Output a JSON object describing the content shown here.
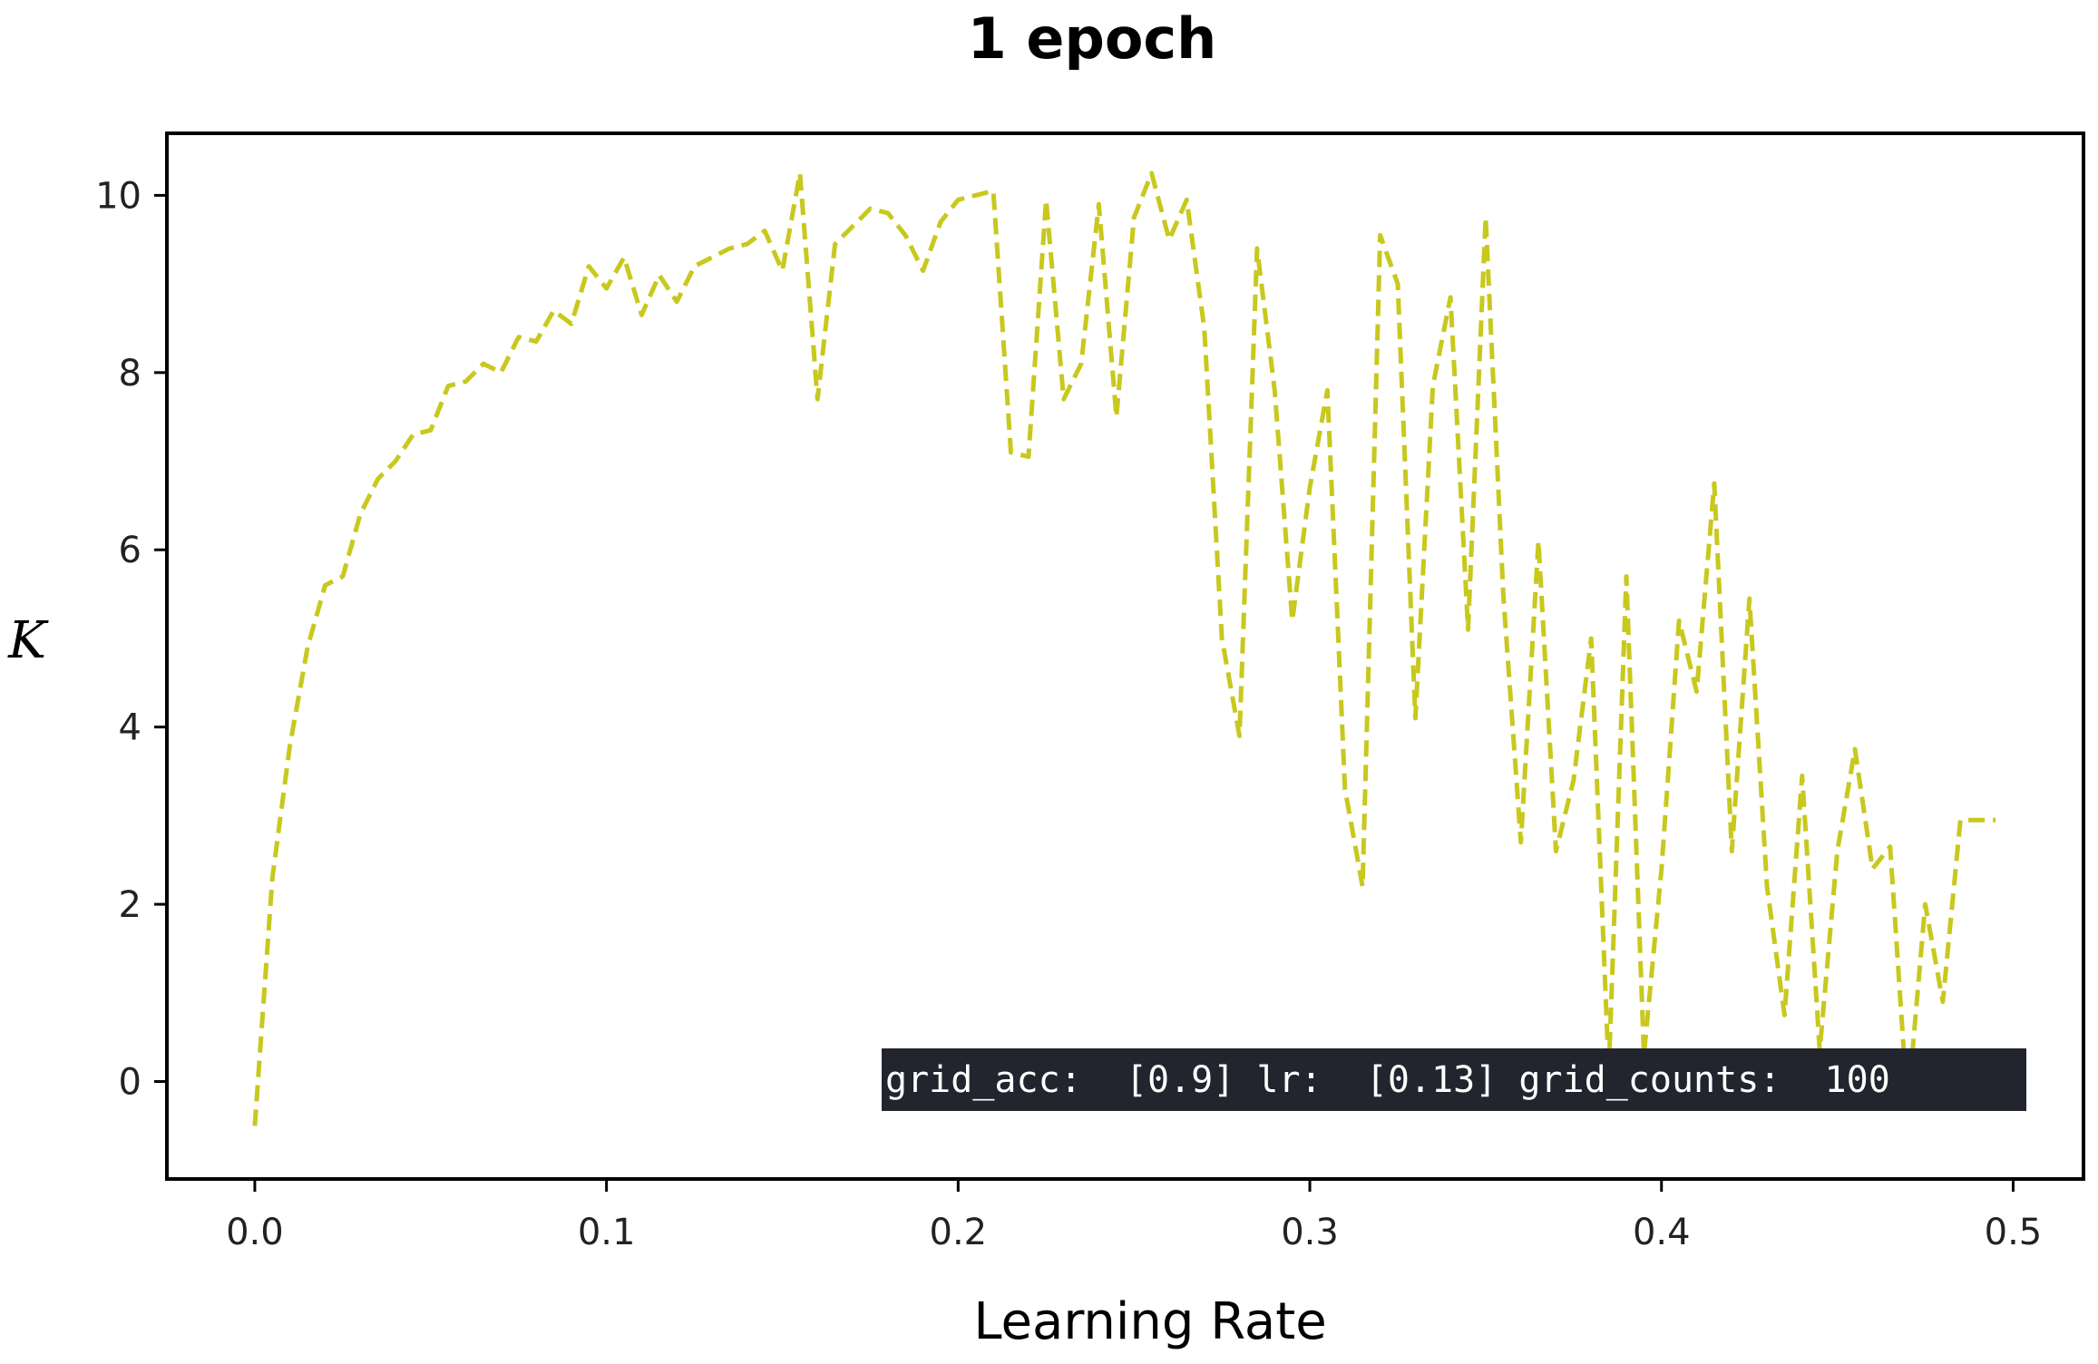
{
  "chart_data": {
    "type": "line",
    "title": "1 epoch",
    "xlabel": "Learning Rate",
    "ylabel": "K",
    "xlim": [
      -0.025,
      0.52
    ],
    "ylim": [
      -1.1,
      10.7
    ],
    "xticks": [
      0.0,
      0.1,
      0.2,
      0.3,
      0.4,
      0.5
    ],
    "xtick_labels": [
      "0.0",
      "0.1",
      "0.2",
      "0.3",
      "0.4",
      "0.5"
    ],
    "yticks": [
      0,
      2,
      4,
      6,
      8,
      10
    ],
    "ytick_labels": [
      "0",
      "2",
      "4",
      "6",
      "8",
      "10"
    ],
    "grid": false,
    "series": [
      {
        "color": "#c8c81e",
        "line_style": "dashed",
        "x": [
          0.0,
          0.005,
          0.01,
          0.015,
          0.02,
          0.025,
          0.03,
          0.035,
          0.04,
          0.045,
          0.05,
          0.055,
          0.06,
          0.065,
          0.07,
          0.075,
          0.08,
          0.085,
          0.09,
          0.095,
          0.1,
          0.105,
          0.11,
          0.115,
          0.12,
          0.125,
          0.13,
          0.135,
          0.14,
          0.145,
          0.15,
          0.155,
          0.16,
          0.165,
          0.17,
          0.175,
          0.18,
          0.185,
          0.19,
          0.195,
          0.2,
          0.205,
          0.21,
          0.215,
          0.22,
          0.225,
          0.23,
          0.235,
          0.24,
          0.245,
          0.25,
          0.255,
          0.26,
          0.265,
          0.27,
          0.275,
          0.28,
          0.285,
          0.29,
          0.295,
          0.3,
          0.305,
          0.31,
          0.315,
          0.32,
          0.325,
          0.33,
          0.335,
          0.34,
          0.345,
          0.35,
          0.355,
          0.36,
          0.365,
          0.37,
          0.375,
          0.38,
          0.385,
          0.39,
          0.395,
          0.4,
          0.405,
          0.41,
          0.415,
          0.42,
          0.425,
          0.43,
          0.435,
          0.44,
          0.445,
          0.45,
          0.455,
          0.46,
          0.465,
          0.47,
          0.475,
          0.48,
          0.485,
          0.49,
          0.495
        ],
        "y": [
          -0.5,
          2.3,
          3.8,
          4.9,
          5.6,
          5.7,
          6.4,
          6.8,
          7.0,
          7.3,
          7.35,
          7.85,
          7.9,
          8.1,
          8.0,
          8.4,
          8.35,
          8.7,
          8.55,
          9.2,
          8.95,
          9.3,
          8.65,
          9.1,
          8.8,
          9.2,
          9.3,
          9.4,
          9.45,
          9.6,
          9.15,
          10.25,
          7.7,
          9.45,
          9.65,
          9.85,
          9.8,
          9.55,
          9.15,
          9.7,
          9.95,
          10.0,
          10.05,
          7.1,
          7.05,
          9.95,
          7.7,
          8.1,
          9.9,
          7.5,
          9.75,
          10.25,
          9.5,
          9.95,
          8.5,
          5.0,
          3.9,
          9.4,
          7.8,
          5.2,
          6.7,
          7.8,
          3.3,
          2.2,
          9.55,
          9.0,
          4.1,
          7.85,
          8.85,
          5.1,
          9.75,
          5.5,
          2.7,
          6.1,
          2.6,
          3.4,
          5.0,
          0.1,
          5.7,
          0.3,
          2.4,
          5.2,
          4.4,
          6.75,
          2.6,
          5.45,
          2.2,
          0.75,
          3.45,
          0.35,
          2.6,
          3.75,
          2.4,
          2.65,
          -0.3,
          2.0,
          0.9,
          2.95,
          2.95,
          2.95
        ]
      }
    ],
    "annotation": {
      "text": "grid_acc:  [0.9] lr:  [0.13] grid_counts:  100",
      "background": "#22252e",
      "text_color": "#ffffff"
    },
    "colors": {
      "line": "#c8c81e",
      "axes": "#000000",
      "background": "#ffffff"
    }
  }
}
